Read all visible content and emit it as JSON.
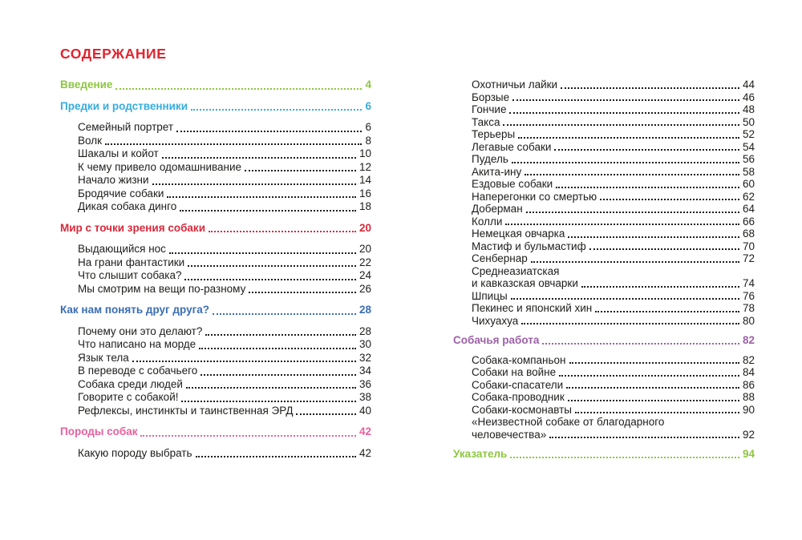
{
  "title": "СОДЕРЖАНИЕ",
  "colors": {
    "title": "#e2242f",
    "green": "#8dc63f",
    "cyan": "#36ade0",
    "red": "#d8293b",
    "blue": "#3a6db5",
    "pink": "#e8609c",
    "purple": "#9c61a7",
    "body": "#1d1d1b"
  },
  "columns": [
    {
      "name": "left",
      "blocks": [
        {
          "type": "heading",
          "color": "green",
          "label": "Введение",
          "page": "4"
        },
        {
          "type": "heading",
          "color": "cyan",
          "label": "Предки и родственники",
          "page": "6"
        },
        {
          "type": "entries",
          "entries": [
            {
              "label": "Семейный портрет",
              "page": "6"
            },
            {
              "label": "Волк",
              "page": "8"
            },
            {
              "label": "Шакалы и койот",
              "page": "10"
            },
            {
              "label": "К чему привело одомашнивание",
              "page": "12"
            },
            {
              "label": "Начало жизни",
              "page": "14"
            },
            {
              "label": "Бродячие собаки",
              "page": "16"
            },
            {
              "label": "Дикая собака динго",
              "page": "18"
            }
          ]
        },
        {
          "type": "heading",
          "color": "red",
          "label": "Мир с точки зрения собаки",
          "page": "20"
        },
        {
          "type": "entries",
          "entries": [
            {
              "label": "Выдающийся нос",
              "page": "20"
            },
            {
              "label": "На грани фантастики",
              "page": "22"
            },
            {
              "label": "Что слышит собака?",
              "page": "24"
            },
            {
              "label": "Мы смотрим на вещи по-разному",
              "page": "26"
            }
          ]
        },
        {
          "type": "heading",
          "color": "blue",
          "label": "Как нам понять друг друга?",
          "page": "28"
        },
        {
          "type": "entries",
          "entries": [
            {
              "label": "Почему они это делают?",
              "page": "28"
            },
            {
              "label": "Что написано на морде",
              "page": "30"
            },
            {
              "label": "Язык тела",
              "page": "32"
            },
            {
              "label": "В переводе с собачьего",
              "page": "34"
            },
            {
              "label": "Собака среди людей",
              "page": "36"
            },
            {
              "label": "Говорите с собакой!",
              "page": "38"
            },
            {
              "label": "Рефлексы, инстинкты и таинственная ЭРД",
              "page": "40"
            }
          ]
        },
        {
          "type": "heading",
          "color": "pink",
          "label": "Породы собак",
          "page": "42"
        },
        {
          "type": "entries",
          "entries": [
            {
              "label": "Какую породу выбрать",
              "page": "42"
            }
          ]
        }
      ]
    },
    {
      "name": "right",
      "blocks": [
        {
          "type": "entries",
          "entries": [
            {
              "label": "Охотничьи лайки",
              "page": "44"
            },
            {
              "label": "Борзые",
              "page": "46"
            },
            {
              "label": "Гончие",
              "page": "48"
            },
            {
              "label": "Такса",
              "page": "50"
            },
            {
              "label": "Терьеры",
              "page": "52"
            },
            {
              "label": "Легавые собаки",
              "page": "54"
            },
            {
              "label": "Пудель",
              "page": "56"
            },
            {
              "label": "Акита-ину",
              "page": "58"
            },
            {
              "label": "Ездовые собаки",
              "page": "60"
            },
            {
              "label": "Наперегонки со смертью",
              "page": "62"
            },
            {
              "label": "Доберман",
              "page": "64"
            },
            {
              "label": "Колли",
              "page": "66"
            },
            {
              "label": "Немецкая овчарка",
              "page": "68"
            },
            {
              "label": "Мастиф и бульмастиф",
              "page": "70"
            },
            {
              "label": "Сенбернар",
              "page": "72"
            },
            {
              "label": "Среднеазиатская",
              "label2": "и кавказская овчарки",
              "page": "74"
            },
            {
              "label": "Шпицы",
              "page": "76"
            },
            {
              "label": "Пекинес и японский хин",
              "page": "78"
            },
            {
              "label": "Чихуахуа",
              "page": "80"
            }
          ]
        },
        {
          "type": "heading",
          "color": "purple",
          "label": "Собачья работа",
          "page": "82"
        },
        {
          "type": "entries",
          "entries": [
            {
              "label": "Собака-компаньон",
              "page": "82"
            },
            {
              "label": "Собаки на войне",
              "page": "84"
            },
            {
              "label": "Собаки-спасатели",
              "page": "86"
            },
            {
              "label": "Собака-проводник",
              "page": "88"
            },
            {
              "label": "Собаки-космонавты",
              "page": "90"
            },
            {
              "label": "«Неизвестной собаке от благодарного",
              "label2": "человечества»",
              "page": "92"
            }
          ]
        },
        {
          "type": "heading",
          "color": "green",
          "label": "Указатель",
          "page": "94"
        }
      ]
    }
  ]
}
